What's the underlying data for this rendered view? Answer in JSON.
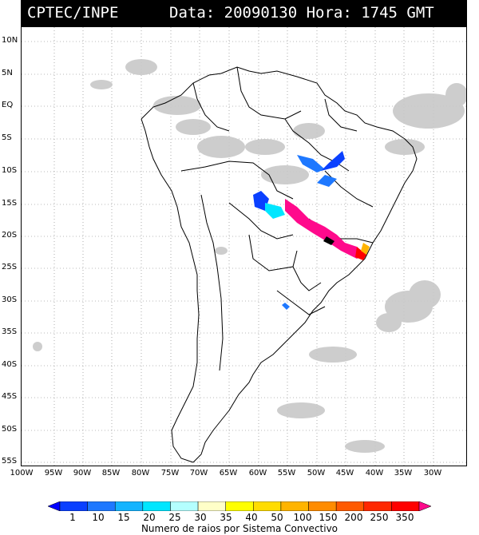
{
  "header": {
    "agency": "CPTEC/INPE",
    "datetime": "Data: 20090130 Hora: 1745 GMT"
  },
  "map": {
    "lat_labels": [
      "10N",
      "5N",
      "EQ",
      "5S",
      "10S",
      "15S",
      "20S",
      "25S",
      "30S",
      "35S",
      "40S",
      "45S",
      "50S",
      "55S"
    ],
    "lon_labels": [
      "100W",
      "95W",
      "90W",
      "85W",
      "80W",
      "75W",
      "70W",
      "65W",
      "60W",
      "55W",
      "50W",
      "45W",
      "40W",
      "35W",
      "30W"
    ],
    "features": [
      "country-borders",
      "state-borders",
      "cloud-cover",
      "convective-systems"
    ]
  },
  "legend": {
    "caption": "Numero de raios por Sistema Convectivo",
    "ticks": [
      "1",
      "10",
      "15",
      "20",
      "25",
      "30",
      "35",
      "40",
      "50",
      "100",
      "150",
      "200",
      "250",
      "350"
    ],
    "colors": [
      "#0000ff",
      "#0a40ff",
      "#1e78ff",
      "#14b4ff",
      "#00e6ff",
      "#b4ffff",
      "#ffffc8",
      "#ffff00",
      "#ffdc00",
      "#ffb400",
      "#ff8c00",
      "#ff5a00",
      "#ff2800",
      "#ff0000",
      "#ff0a8c"
    ]
  }
}
